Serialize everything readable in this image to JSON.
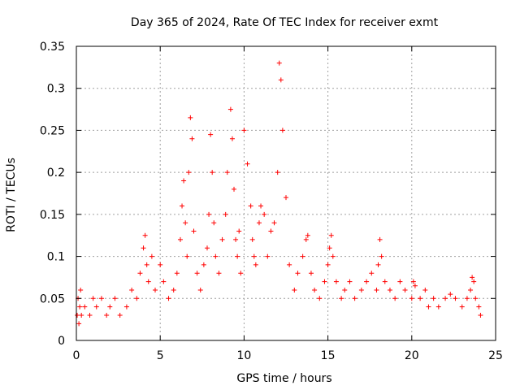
{
  "chart_data": {
    "type": "scatter",
    "title": "Day 365 of 2024, Rate Of TEC Index for receiver exmt",
    "xlabel": "GPS time / hours",
    "ylabel": "ROTI / TECUs",
    "xlim": [
      0,
      25
    ],
    "ylim": [
      0,
      0.35
    ],
    "x_ticks": [
      0,
      5,
      10,
      15,
      20,
      25
    ],
    "x_tick_labels": [
      "0",
      "5",
      "10",
      "15",
      "20",
      "25"
    ],
    "y_ticks": [
      0,
      0.05,
      0.1,
      0.15,
      0.2,
      0.25,
      0.3,
      0.35
    ],
    "y_tick_labels": [
      "0",
      "0.05",
      "0.1",
      "0.15",
      "0.2",
      "0.25",
      "0.3",
      "0.35"
    ],
    "grid": true,
    "marker": "+",
    "color": "#ff0000",
    "series": [
      {
        "name": "ROTI",
        "x": [
          0.05,
          0.1,
          0.15,
          0.2,
          0.25,
          0.3,
          0.5,
          0.8,
          1.0,
          1.2,
          1.5,
          1.8,
          2.0,
          2.3,
          2.6,
          3.0,
          3.3,
          3.6,
          3.8,
          4.0,
          4.1,
          4.2,
          4.3,
          4.5,
          4.7,
          5.0,
          5.2,
          5.5,
          5.8,
          6.0,
          6.2,
          6.3,
          6.4,
          6.5,
          6.6,
          6.7,
          6.8,
          6.9,
          7.0,
          7.2,
          7.4,
          7.6,
          7.8,
          7.9,
          8.0,
          8.1,
          8.2,
          8.3,
          8.5,
          8.7,
          8.9,
          9.0,
          9.2,
          9.3,
          9.4,
          9.5,
          9.6,
          9.7,
          9.8,
          10.0,
          10.2,
          10.4,
          10.5,
          10.6,
          10.7,
          10.9,
          11.0,
          11.2,
          11.4,
          11.6,
          11.8,
          12.0,
          12.1,
          12.2,
          12.3,
          12.5,
          12.7,
          13.0,
          13.2,
          13.5,
          13.7,
          13.8,
          14.0,
          14.2,
          14.5,
          14.8,
          15.0,
          15.1,
          15.2,
          15.3,
          15.5,
          15.8,
          16.0,
          16.3,
          16.6,
          17.0,
          17.3,
          17.6,
          17.9,
          18.0,
          18.1,
          18.2,
          18.4,
          18.7,
          19.0,
          19.3,
          19.6,
          20.0,
          20.1,
          20.2,
          20.5,
          20.8,
          21.0,
          21.3,
          21.6,
          22.0,
          22.3,
          22.6,
          23.0,
          23.3,
          23.5,
          23.6,
          23.7,
          23.8,
          24.0,
          24.1
        ],
        "y": [
          0.03,
          0.05,
          0.02,
          0.04,
          0.06,
          0.03,
          0.04,
          0.03,
          0.05,
          0.04,
          0.05,
          0.03,
          0.04,
          0.05,
          0.03,
          0.04,
          0.06,
          0.05,
          0.08,
          0.11,
          0.125,
          0.09,
          0.07,
          0.1,
          0.06,
          0.09,
          0.07,
          0.05,
          0.06,
          0.08,
          0.12,
          0.16,
          0.19,
          0.14,
          0.1,
          0.2,
          0.265,
          0.24,
          0.13,
          0.08,
          0.06,
          0.09,
          0.11,
          0.15,
          0.245,
          0.2,
          0.14,
          0.1,
          0.08,
          0.12,
          0.15,
          0.2,
          0.275,
          0.24,
          0.18,
          0.12,
          0.1,
          0.13,
          0.08,
          0.25,
          0.21,
          0.16,
          0.12,
          0.1,
          0.09,
          0.14,
          0.16,
          0.15,
          0.1,
          0.13,
          0.14,
          0.2,
          0.33,
          0.31,
          0.25,
          0.17,
          0.09,
          0.06,
          0.08,
          0.1,
          0.12,
          0.125,
          0.08,
          0.06,
          0.05,
          0.07,
          0.09,
          0.11,
          0.125,
          0.1,
          0.07,
          0.05,
          0.06,
          0.07,
          0.05,
          0.06,
          0.07,
          0.08,
          0.06,
          0.09,
          0.12,
          0.1,
          0.07,
          0.06,
          0.05,
          0.07,
          0.06,
          0.05,
          0.07,
          0.065,
          0.05,
          0.06,
          0.04,
          0.05,
          0.04,
          0.05,
          0.055,
          0.05,
          0.04,
          0.05,
          0.06,
          0.075,
          0.07,
          0.05,
          0.04,
          0.03
        ]
      }
    ]
  }
}
